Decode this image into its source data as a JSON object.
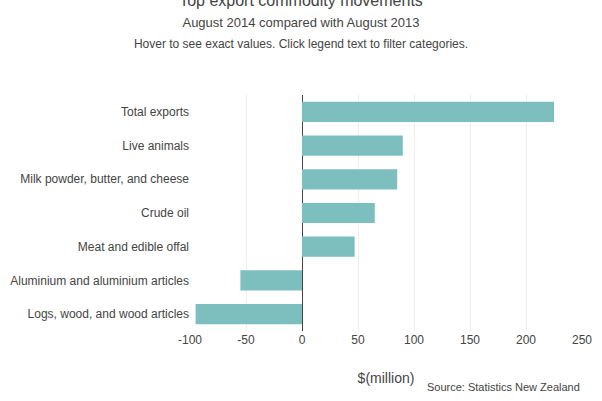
{
  "chart_data": {
    "type": "bar",
    "orientation": "horizontal",
    "title": "Top export commodity movements",
    "subtitle": "August 2014 compared with August 2013",
    "annotations": [
      "Hover to see exact values. Click legend text to filter categories.",
      "Source: Statistics New Zealand"
    ],
    "categories": [
      "Total exports",
      "Live animals",
      "Milk powder, butter, and cheese",
      "Crude oil",
      "Meat and edible offal",
      "Aluminium and aluminium articles",
      "Logs, wood, and wood articles"
    ],
    "values": [
      225,
      90,
      85,
      65,
      47,
      -55,
      -95
    ],
    "color": "#7dbfbf",
    "xlabel": "$(million)",
    "xlim": [
      -100,
      250
    ],
    "xticks": [
      -100,
      -50,
      0,
      50,
      100,
      150,
      200,
      250
    ],
    "grid": true
  }
}
